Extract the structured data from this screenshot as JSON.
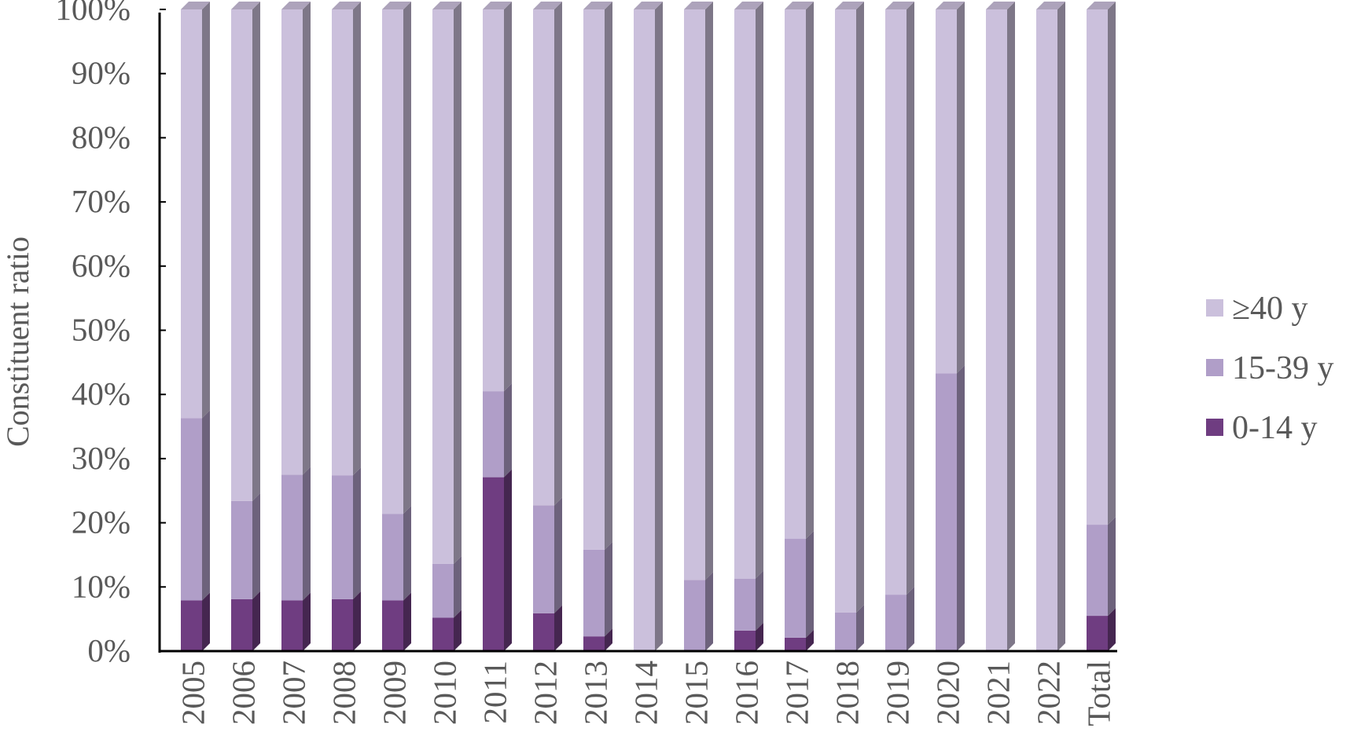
{
  "chart_data": {
    "type": "bar",
    "stacked": true,
    "percent": true,
    "style_3d": true,
    "title": "",
    "xlabel": "",
    "ylabel": "Constituent ratio",
    "ylim": [
      0,
      100
    ],
    "yticks": [
      "0%",
      "10%",
      "20%",
      "30%",
      "40%",
      "50%",
      "60%",
      "70%",
      "80%",
      "90%",
      "100%"
    ],
    "grid": false,
    "legend_position": "right",
    "categories": [
      "2005",
      "2006",
      "2007",
      "2008",
      "2009",
      "2010",
      "2011",
      "2012",
      "2013",
      "2014",
      "2015",
      "2016",
      "2017",
      "2018",
      "2019",
      "2020",
      "2021",
      "2022",
      "Total"
    ],
    "series": [
      {
        "name": "0-14 y",
        "color": "#6f3d81",
        "values": [
          7.9,
          8.1,
          7.9,
          8.1,
          7.9,
          5.2,
          27.1,
          5.9,
          2.3,
          0,
          0,
          3.2,
          2.1,
          0,
          0,
          0,
          0,
          0,
          5.5
        ]
      },
      {
        "name": "15-39 y",
        "color": "#b09ec8",
        "values": [
          28.4,
          15.3,
          19.6,
          19.3,
          13.5,
          8.4,
          13.4,
          16.8,
          13.5,
          0,
          11.1,
          8.1,
          15.4,
          6.0,
          8.8,
          43.3,
          0,
          0,
          14.2
        ]
      },
      {
        "name": "≥40 y",
        "color": "#cbc0dc",
        "values": [
          63.7,
          76.6,
          72.5,
          72.6,
          78.6,
          86.4,
          59.5,
          77.3,
          84.2,
          100,
          88.9,
          88.7,
          82.5,
          94.0,
          91.2,
          56.7,
          100,
          100,
          80.3
        ]
      }
    ],
    "legend": [
      "≥40 y",
      "15-39 y",
      "0-14 y"
    ]
  }
}
